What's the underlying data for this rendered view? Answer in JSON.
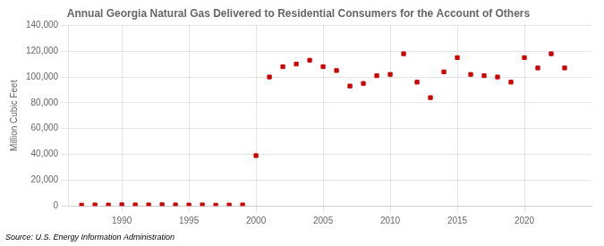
{
  "chart_data": {
    "type": "scatter",
    "title": "Annual Georgia Natural Gas Delivered to Residential Consumers for the Account of Others",
    "ylabel": "Million Cubic Feet",
    "annotation": "Source: U.S. Energy Information Administration",
    "x": [
      1987,
      1988,
      1989,
      1990,
      1991,
      1992,
      1993,
      1994,
      1995,
      1996,
      1997,
      1998,
      1999,
      2000,
      2001,
      2002,
      2003,
      2004,
      2005,
      2006,
      2007,
      2008,
      2009,
      2010,
      2011,
      2012,
      2013,
      2014,
      2015,
      2016,
      2017,
      2018,
      2019,
      2020,
      2021,
      2022,
      2023
    ],
    "values": [
      600,
      800,
      700,
      900,
      800,
      800,
      900,
      800,
      700,
      800,
      600,
      700,
      800,
      39000,
      100000,
      108000,
      110000,
      113000,
      108000,
      105000,
      93000,
      95000,
      101000,
      102000,
      118000,
      96000,
      84000,
      104000,
      115000,
      102000,
      101000,
      100000,
      96000,
      115000,
      107000,
      118000,
      107000
    ],
    "color": "#cc0000",
    "marker": "square",
    "xlim": [
      1986,
      2025
    ],
    "xticks": [
      1990,
      1995,
      2000,
      2005,
      2010,
      2015,
      2020
    ],
    "ylim": [
      0,
      140000
    ],
    "yticks": [
      0,
      {
        "value": 20000,
        "label": "20,000"
      },
      {
        "value": 40000,
        "label": "40,000"
      },
      {
        "value": 60000,
        "label": "60,000"
      },
      {
        "value": 80000,
        "label": "80,000"
      },
      {
        "value": 100000,
        "label": "100,000"
      },
      {
        "value": 120000,
        "label": "120,000"
      },
      {
        "value": 140000,
        "label": "140,000"
      }
    ],
    "grid": true
  }
}
